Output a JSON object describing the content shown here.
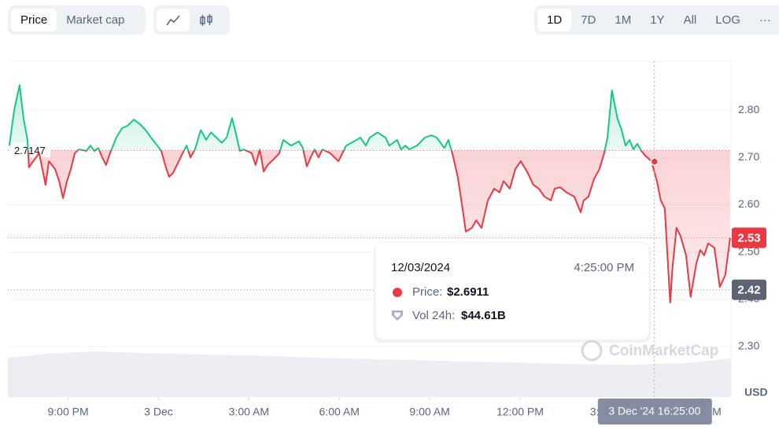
{
  "controls": {
    "views": [
      "Price",
      "Market cap"
    ],
    "ranges": [
      "1D",
      "7D",
      "1M",
      "1Y",
      "All"
    ],
    "scale": "LOG",
    "more": "···"
  },
  "chart_data": {
    "type": "line",
    "currency": "USD",
    "watermark": "CoinMarketCap",
    "up_color": "#16c784",
    "down_color": "#ea3943",
    "baseline": {
      "value": 2.7147,
      "label": "2.7147"
    },
    "xlim": [
      0,
      24
    ],
    "ylim": [
      2.2,
      2.9
    ],
    "grid": true,
    "xticks": [
      {
        "value": 2,
        "label": "9:00 PM"
      },
      {
        "value": 5,
        "label": "3 Dec"
      },
      {
        "value": 8,
        "label": "3:00 AM"
      },
      {
        "value": 11,
        "label": "6:00 AM"
      },
      {
        "value": 14,
        "label": "9:00 AM"
      },
      {
        "value": 17,
        "label": "12:00 PM"
      },
      {
        "value": 20,
        "label": "3:00 PM"
      },
      {
        "value": 23,
        "label": "6:00 PM"
      }
    ],
    "yticks": [
      {
        "value": 2.3,
        "label": "2.30"
      },
      {
        "value": 2.4,
        "label": "2.40"
      },
      {
        "value": 2.5,
        "label": "2.50"
      },
      {
        "value": 2.6,
        "label": "2.60"
      },
      {
        "value": 2.7,
        "label": "2.70"
      },
      {
        "value": 2.8,
        "label": "2.80"
      }
    ],
    "price_labels": [
      {
        "value": 2.53,
        "label": "2.53",
        "color": "#ea3943"
      },
      {
        "value": 2.42,
        "label": "2.42",
        "color": "#5d6373"
      }
    ],
    "hover": {
      "x": 21.46,
      "value": 2.6911,
      "axis_label": "3 Dec '24 16:25:00"
    },
    "tooltip": {
      "date": "12/03/2024",
      "time": "4:25:00 PM",
      "price_label": "Price:",
      "price": "$2.6911",
      "volume_label": "Vol 24h:",
      "volume": "$44.61B"
    },
    "x": [
      0.05,
      0.21,
      0.39,
      0.52,
      0.65,
      0.7,
      0.84,
      1.04,
      1.25,
      1.36,
      1.57,
      1.7,
      1.83,
      1.96,
      2.09,
      2.22,
      2.35,
      2.61,
      2.74,
      2.87,
      3.0,
      3.13,
      3.26,
      3.39,
      3.6,
      3.79,
      3.97,
      4.18,
      4.39,
      4.57,
      4.75,
      4.96,
      5.09,
      5.22,
      5.35,
      5.48,
      5.61,
      5.8,
      5.93,
      6.06,
      6.21,
      6.4,
      6.58,
      6.74,
      6.92,
      7.1,
      7.26,
      7.44,
      7.57,
      7.7,
      7.83,
      8.09,
      8.22,
      8.36,
      8.49,
      8.62,
      8.75,
      8.88,
      9.01,
      9.14,
      9.4,
      9.66,
      9.79,
      9.92,
      10.05,
      10.18,
      10.31,
      10.44,
      10.7,
      10.97,
      11.23,
      11.49,
      11.7,
      11.88,
      12.01,
      12.27,
      12.53,
      12.66,
      12.92,
      13.05,
      13.19,
      13.32,
      13.58,
      13.84,
      14.05,
      14.23,
      14.49,
      14.62,
      14.75,
      14.93,
      15.09,
      15.2,
      15.4,
      15.54,
      15.72,
      15.93,
      16.14,
      16.32,
      16.45,
      16.66,
      16.84,
      17.02,
      17.23,
      17.44,
      17.62,
      17.81,
      18.02,
      18.15,
      18.33,
      18.54,
      18.8,
      19.01,
      19.11,
      19.27,
      19.45,
      19.63,
      19.79,
      19.9,
      20.05,
      20.23,
      20.37,
      20.5,
      20.63,
      20.76,
      20.89,
      21.02,
      21.15,
      21.36,
      21.54,
      21.67,
      21.8,
      21.98,
      22.06,
      22.19,
      22.32,
      22.51,
      22.66,
      22.85,
      22.98,
      23.11,
      23.24,
      23.45,
      23.63,
      23.81,
      23.97
    ],
    "series": [
      {
        "name": "Price",
        "values": [
          2.725,
          2.8,
          2.853,
          2.783,
          2.737,
          2.679,
          2.692,
          2.709,
          2.642,
          2.692,
          2.675,
          2.65,
          2.614,
          2.65,
          2.675,
          2.709,
          2.717,
          2.714,
          2.725,
          2.714,
          2.72,
          2.7,
          2.684,
          2.709,
          2.742,
          2.762,
          2.767,
          2.78,
          2.77,
          2.758,
          2.742,
          2.725,
          2.714,
          2.684,
          2.659,
          2.667,
          2.684,
          2.709,
          2.725,
          2.7,
          2.717,
          2.758,
          2.737,
          2.753,
          2.742,
          2.731,
          2.742,
          2.783,
          2.75,
          2.714,
          2.717,
          2.709,
          2.684,
          2.717,
          2.67,
          2.684,
          2.692,
          2.7,
          2.709,
          2.737,
          2.725,
          2.734,
          2.72,
          2.681,
          2.7,
          2.717,
          2.7,
          2.717,
          2.709,
          2.692,
          2.725,
          2.734,
          2.742,
          2.725,
          2.742,
          2.753,
          2.742,
          2.725,
          2.737,
          2.717,
          2.725,
          2.717,
          2.725,
          2.742,
          2.747,
          2.742,
          2.72,
          2.737,
          2.709,
          2.659,
          2.592,
          2.543,
          2.551,
          2.567,
          2.551,
          2.609,
          2.634,
          2.626,
          2.65,
          2.634,
          2.675,
          2.692,
          2.67,
          2.642,
          2.634,
          2.617,
          2.609,
          2.634,
          2.637,
          2.626,
          2.617,
          2.584,
          2.609,
          2.617,
          2.654,
          2.675,
          2.709,
          2.742,
          2.842,
          2.783,
          2.758,
          2.725,
          2.737,
          2.717,
          2.729,
          2.714,
          2.704,
          2.692,
          2.65,
          2.609,
          2.592,
          2.393,
          2.468,
          2.551,
          2.534,
          2.493,
          2.405,
          2.476,
          2.504,
          2.493,
          2.518,
          2.509,
          2.426,
          2.451,
          2.53
        ]
      }
    ]
  }
}
